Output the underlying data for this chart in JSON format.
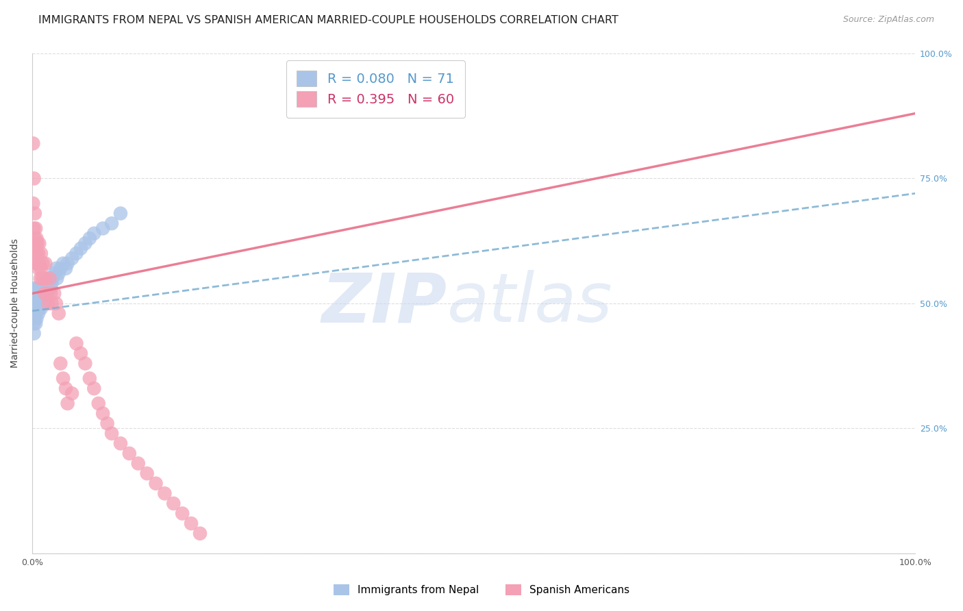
{
  "title": "IMMIGRANTS FROM NEPAL VS SPANISH AMERICAN MARRIED-COUPLE HOUSEHOLDS CORRELATION CHART",
  "source": "Source: ZipAtlas.com",
  "ylabel": "Married-couple Households",
  "nepal_R": 0.08,
  "nepal_N": 71,
  "spanish_R": 0.395,
  "spanish_N": 60,
  "nepal_color": "#aac4e8",
  "spanish_color": "#f4a0b5",
  "nepal_line_color": "#7aaed0",
  "spanish_line_color": "#e8708a",
  "background_color": "#ffffff",
  "grid_color": "#dddddd",
  "title_fontsize": 11.5,
  "axis_label_fontsize": 10,
  "tick_fontsize": 9,
  "legend_fontsize": 14,
  "nepal_points_x": [
    0.001,
    0.001,
    0.001,
    0.001,
    0.001,
    0.002,
    0.002,
    0.002,
    0.002,
    0.002,
    0.002,
    0.002,
    0.003,
    0.003,
    0.003,
    0.003,
    0.003,
    0.004,
    0.004,
    0.004,
    0.004,
    0.005,
    0.005,
    0.005,
    0.005,
    0.006,
    0.006,
    0.006,
    0.007,
    0.007,
    0.007,
    0.008,
    0.008,
    0.008,
    0.009,
    0.009,
    0.01,
    0.01,
    0.011,
    0.011,
    0.012,
    0.012,
    0.013,
    0.014,
    0.015,
    0.015,
    0.016,
    0.017,
    0.018,
    0.019,
    0.02,
    0.021,
    0.022,
    0.023,
    0.025,
    0.027,
    0.028,
    0.03,
    0.032,
    0.035,
    0.038,
    0.04,
    0.045,
    0.05,
    0.055,
    0.06,
    0.065,
    0.07,
    0.08,
    0.09,
    0.1
  ],
  "nepal_points_y": [
    0.5,
    0.52,
    0.48,
    0.47,
    0.51,
    0.49,
    0.52,
    0.5,
    0.53,
    0.48,
    0.46,
    0.44,
    0.51,
    0.49,
    0.52,
    0.47,
    0.5,
    0.53,
    0.48,
    0.51,
    0.46,
    0.5,
    0.52,
    0.49,
    0.47,
    0.51,
    0.53,
    0.49,
    0.52,
    0.5,
    0.48,
    0.51,
    0.49,
    0.53,
    0.5,
    0.52,
    0.51,
    0.49,
    0.52,
    0.5,
    0.53,
    0.51,
    0.5,
    0.52,
    0.54,
    0.51,
    0.53,
    0.52,
    0.54,
    0.53,
    0.55,
    0.53,
    0.54,
    0.55,
    0.56,
    0.57,
    0.55,
    0.56,
    0.57,
    0.58,
    0.57,
    0.58,
    0.59,
    0.6,
    0.61,
    0.62,
    0.63,
    0.64,
    0.65,
    0.66,
    0.68
  ],
  "spanish_points_x": [
    0.001,
    0.001,
    0.002,
    0.002,
    0.002,
    0.003,
    0.003,
    0.003,
    0.004,
    0.004,
    0.005,
    0.005,
    0.005,
    0.006,
    0.006,
    0.007,
    0.007,
    0.008,
    0.008,
    0.009,
    0.01,
    0.01,
    0.011,
    0.012,
    0.013,
    0.014,
    0.015,
    0.015,
    0.016,
    0.018,
    0.02,
    0.021,
    0.022,
    0.025,
    0.027,
    0.03,
    0.032,
    0.035,
    0.038,
    0.04,
    0.045,
    0.05,
    0.055,
    0.06,
    0.065,
    0.07,
    0.075,
    0.08,
    0.085,
    0.09,
    0.1,
    0.11,
    0.12,
    0.13,
    0.14,
    0.15,
    0.16,
    0.17,
    0.18,
    0.19
  ],
  "spanish_points_y": [
    0.82,
    0.7,
    0.75,
    0.65,
    0.62,
    0.68,
    0.63,
    0.6,
    0.65,
    0.62,
    0.63,
    0.6,
    0.58,
    0.62,
    0.58,
    0.6,
    0.57,
    0.62,
    0.58,
    0.55,
    0.6,
    0.57,
    0.55,
    0.58,
    0.55,
    0.52,
    0.58,
    0.55,
    0.52,
    0.5,
    0.55,
    0.52,
    0.5,
    0.52,
    0.5,
    0.48,
    0.38,
    0.35,
    0.33,
    0.3,
    0.32,
    0.42,
    0.4,
    0.38,
    0.35,
    0.33,
    0.3,
    0.28,
    0.26,
    0.24,
    0.22,
    0.2,
    0.18,
    0.16,
    0.14,
    0.12,
    0.1,
    0.08,
    0.06,
    0.04
  ],
  "x_min": 0.0,
  "x_max": 1.0,
  "y_min": 0.0,
  "y_max": 1.0,
  "x_ticks": [
    0.0,
    0.25,
    0.5,
    0.75,
    1.0
  ],
  "x_tick_labels": [
    "0.0%",
    "",
    "",
    "",
    "100.0%"
  ],
  "y_ticks_right": [
    0.0,
    0.25,
    0.5,
    0.75,
    1.0
  ],
  "y_tick_labels_right": [
    "",
    "25.0%",
    "50.0%",
    "75.0%",
    "100.0%"
  ],
  "nepal_trend_x": [
    0.0,
    1.0
  ],
  "nepal_trend_y_start": 0.485,
  "nepal_trend_y_end": 0.72,
  "spanish_trend_x": [
    0.0,
    1.0
  ],
  "spanish_trend_y_start": 0.52,
  "spanish_trend_y_end": 0.88
}
